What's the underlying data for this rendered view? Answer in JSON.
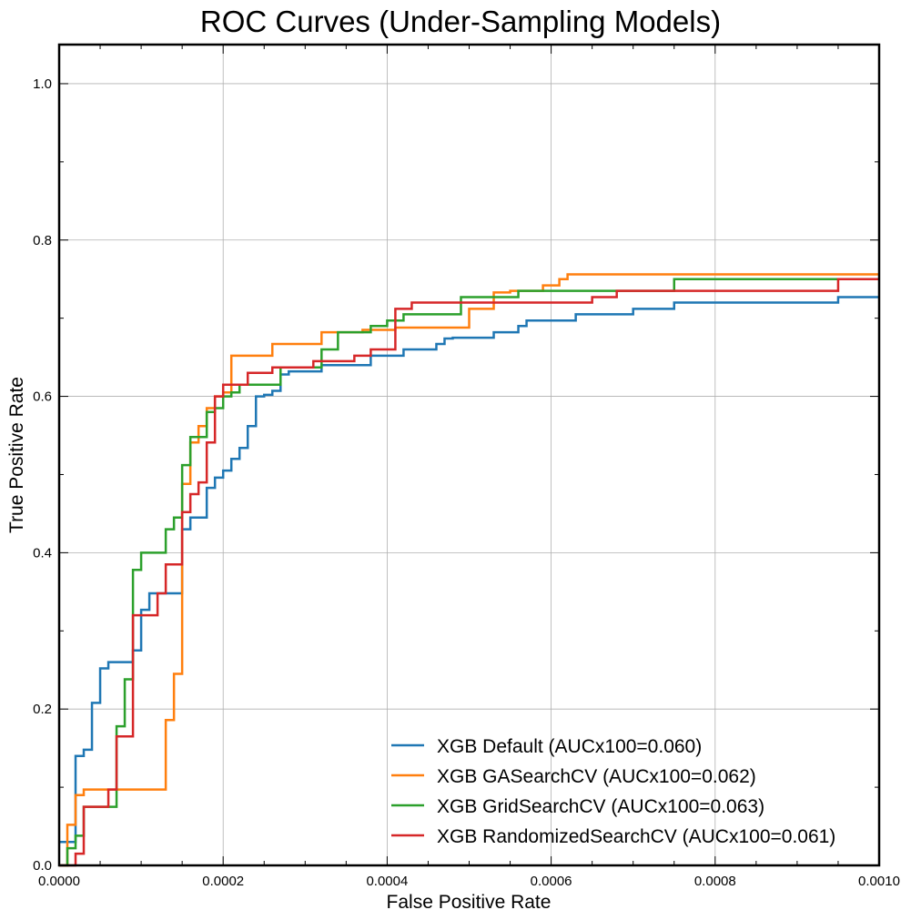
{
  "chart_data": {
    "type": "line",
    "title": "ROC Curves (Under-Sampling Models)",
    "xlabel": "False Positive Rate",
    "ylabel": "True Positive Rate",
    "xlim": [
      0,
      0.001
    ],
    "ylim": [
      0,
      1.05
    ],
    "x_ticks": [
      0,
      0.0002,
      0.0004,
      0.0006,
      0.0008,
      0.001
    ],
    "x_tick_labels": [
      "0.0000",
      "0.0002",
      "0.0004",
      "0.0006",
      "0.0008",
      "0.0010"
    ],
    "y_ticks": [
      0,
      0.2,
      0.4,
      0.6,
      0.8,
      1.0
    ],
    "y_tick_labels": [
      "0.0",
      "0.2",
      "0.4",
      "0.6",
      "0.8",
      "1.0"
    ],
    "grid": true,
    "legend_position": "bottom-right",
    "series": [
      {
        "name": "XGB Default (AUCx100=0.060)",
        "color": "#1f77b4",
        "x": [
          0,
          2e-05,
          2e-05,
          3e-05,
          3e-05,
          4e-05,
          4e-05,
          5e-05,
          5e-05,
          6e-05,
          6e-05,
          9e-05,
          9e-05,
          0.0001,
          0.0001,
          0.00011,
          0.00011,
          0.00012,
          0.00012,
          0.00015,
          0.00015,
          0.00016,
          0.00016,
          0.00018,
          0.00018,
          0.00019,
          0.00019,
          0.0002,
          0.0002,
          0.00021,
          0.00021,
          0.00022,
          0.00022,
          0.00023,
          0.00023,
          0.00024,
          0.00024,
          0.00025,
          0.00025,
          0.00026,
          0.00026,
          0.00027,
          0.00027,
          0.00028,
          0.00028,
          0.00032,
          0.00032,
          0.00038,
          0.00038,
          0.00042,
          0.00042,
          0.00046,
          0.00046,
          0.00047,
          0.00047,
          0.00048,
          0.00048,
          0.00053,
          0.00053,
          0.00056,
          0.00056,
          0.00057,
          0.00057,
          0.00063,
          0.00063,
          0.0007,
          0.0007,
          0.00075,
          0.00075,
          0.00095,
          0.00095,
          0.001
        ],
        "y": [
          0.03,
          0.03,
          0.14,
          0.14,
          0.148,
          0.148,
          0.208,
          0.208,
          0.252,
          0.252,
          0.26,
          0.26,
          0.275,
          0.275,
          0.327,
          0.327,
          0.348,
          0.348,
          0.348,
          0.348,
          0.43,
          0.43,
          0.445,
          0.445,
          0.483,
          0.483,
          0.496,
          0.496,
          0.505,
          0.505,
          0.52,
          0.52,
          0.534,
          0.534,
          0.562,
          0.562,
          0.6,
          0.6,
          0.602,
          0.602,
          0.607,
          0.607,
          0.628,
          0.628,
          0.632,
          0.632,
          0.64,
          0.64,
          0.652,
          0.652,
          0.66,
          0.66,
          0.667,
          0.667,
          0.674,
          0.674,
          0.675,
          0.675,
          0.682,
          0.682,
          0.69,
          0.69,
          0.697,
          0.697,
          0.705,
          0.705,
          0.712,
          0.712,
          0.72,
          0.72,
          0.727,
          0.727
        ]
      },
      {
        "name": "XGB GASearchCV (AUCx100=0.062)",
        "color": "#ff7f0e",
        "x": [
          0,
          1e-05,
          1e-05,
          2e-05,
          2e-05,
          3e-05,
          3e-05,
          0.00013,
          0.00013,
          0.00014,
          0.00014,
          0.00015,
          0.00015,
          0.00016,
          0.00016,
          0.00017,
          0.00017,
          0.00018,
          0.00018,
          0.00019,
          0.00019,
          0.0002,
          0.0002,
          0.00021,
          0.00021,
          0.00026,
          0.00026,
          0.00032,
          0.00032,
          0.00037,
          0.00037,
          0.00041,
          0.00041,
          0.0005,
          0.0005,
          0.00053,
          0.00053,
          0.00055,
          0.00055,
          0.00059,
          0.00059,
          0.00061,
          0.00061,
          0.00062,
          0.00062,
          0.001
        ],
        "y": [
          0,
          0,
          0.052,
          0.052,
          0.09,
          0.09,
          0.097,
          0.097,
          0.186,
          0.186,
          0.245,
          0.245,
          0.488,
          0.488,
          0.541,
          0.541,
          0.562,
          0.562,
          0.585,
          0.585,
          0.6,
          0.6,
          0.605,
          0.605,
          0.652,
          0.652,
          0.667,
          0.667,
          0.682,
          0.682,
          0.685,
          0.685,
          0.688,
          0.688,
          0.712,
          0.712,
          0.733,
          0.733,
          0.735,
          0.735,
          0.742,
          0.742,
          0.75,
          0.75,
          0.756,
          0.756
        ]
      },
      {
        "name": "XGB GridSearchCV (AUCx100=0.063)",
        "color": "#2ca02c",
        "x": [
          0,
          1e-05,
          1e-05,
          2e-05,
          2e-05,
          3e-05,
          3e-05,
          7e-05,
          7e-05,
          8e-05,
          8e-05,
          9e-05,
          9e-05,
          0.0001,
          0.0001,
          0.00013,
          0.00013,
          0.00014,
          0.00014,
          0.00015,
          0.00015,
          0.00016,
          0.00016,
          0.00018,
          0.00018,
          0.00019,
          0.00019,
          0.0002,
          0.0002,
          0.00021,
          0.00021,
          0.00022,
          0.00022,
          0.00027,
          0.00027,
          0.00032,
          0.00032,
          0.00034,
          0.00034,
          0.00038,
          0.00038,
          0.0004,
          0.0004,
          0.00042,
          0.00042,
          0.00049,
          0.00049,
          0.00056,
          0.00056,
          0.00075,
          0.00075,
          0.001
        ],
        "y": [
          0,
          0,
          0.022,
          0.022,
          0.038,
          0.038,
          0.075,
          0.075,
          0.178,
          0.178,
          0.238,
          0.238,
          0.378,
          0.378,
          0.4,
          0.4,
          0.43,
          0.43,
          0.445,
          0.445,
          0.512,
          0.512,
          0.548,
          0.548,
          0.58,
          0.58,
          0.585,
          0.585,
          0.6,
          0.6,
          0.605,
          0.605,
          0.615,
          0.615,
          0.637,
          0.637,
          0.66,
          0.66,
          0.682,
          0.682,
          0.69,
          0.69,
          0.697,
          0.697,
          0.705,
          0.705,
          0.727,
          0.727,
          0.735,
          0.735,
          0.75,
          0.75
        ]
      },
      {
        "name": "XGB RandomizedSearchCV (AUCx100=0.061)",
        "color": "#d62728",
        "x": [
          0,
          2e-05,
          2e-05,
          3e-05,
          3e-05,
          6e-05,
          6e-05,
          7e-05,
          7e-05,
          9e-05,
          9e-05,
          0.00012,
          0.00012,
          0.00013,
          0.00013,
          0.00015,
          0.00015,
          0.00016,
          0.00016,
          0.00017,
          0.00017,
          0.00018,
          0.00018,
          0.00019,
          0.00019,
          0.0002,
          0.0002,
          0.00023,
          0.00023,
          0.00026,
          0.00026,
          0.00031,
          0.00031,
          0.00036,
          0.00036,
          0.00038,
          0.00038,
          0.00041,
          0.00041,
          0.00043,
          0.00043,
          0.00045,
          0.00045,
          0.00065,
          0.00065,
          0.00068,
          0.00068,
          0.00095,
          0.00095,
          0.001
        ],
        "y": [
          0,
          0,
          0.015,
          0.015,
          0.075,
          0.075,
          0.097,
          0.097,
          0.165,
          0.165,
          0.32,
          0.32,
          0.348,
          0.348,
          0.385,
          0.385,
          0.452,
          0.452,
          0.475,
          0.475,
          0.49,
          0.49,
          0.541,
          0.541,
          0.6,
          0.6,
          0.615,
          0.615,
          0.63,
          0.63,
          0.637,
          0.637,
          0.645,
          0.645,
          0.652,
          0.652,
          0.66,
          0.66,
          0.712,
          0.712,
          0.72,
          0.72,
          0.72,
          0.72,
          0.727,
          0.727,
          0.735,
          0.735,
          0.75,
          0.75
        ]
      }
    ]
  }
}
